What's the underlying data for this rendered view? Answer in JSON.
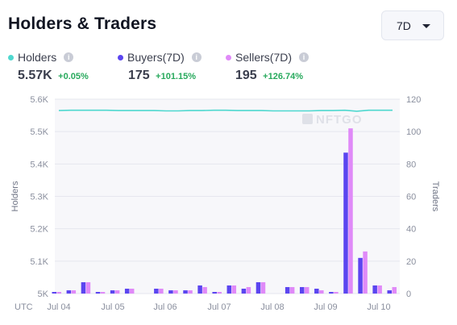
{
  "header": {
    "title": "Holders & Traders"
  },
  "range_select": {
    "value": "7D"
  },
  "stats": [
    {
      "label": "Holders",
      "value": "5.57K",
      "change": "+0.05%",
      "color": "#4fd8cf"
    },
    {
      "label": "Buyers(7D)",
      "value": "175",
      "change": "+101.15%",
      "color": "#5b45f0"
    },
    {
      "label": "Sellers(7D)",
      "value": "195",
      "change": "+126.74%",
      "color": "#e08af8"
    }
  ],
  "watermark": "NFTGO",
  "chart_data": {
    "type": "bar",
    "xlabel_utc": "UTC",
    "ylabel_left": "Holders",
    "ylabel_right": "Traders",
    "ylim_left": [
      5000,
      5600
    ],
    "ylim_right": [
      0,
      120
    ],
    "left_ticks": [
      "5K",
      "5.1K",
      "5.2K",
      "5.3K",
      "5.4K",
      "5.5K",
      "5.6K"
    ],
    "right_ticks": [
      "0",
      "20",
      "40",
      "60",
      "80",
      "100",
      "120"
    ],
    "x_ticks": [
      "Jul 04",
      "Jul 05",
      "Jul 06",
      "Jul 07",
      "Jul 08",
      "Jul 09",
      "Jul 10"
    ],
    "grid": true,
    "series": [
      {
        "name": "Holders",
        "type": "line",
        "color": "#4fd8cf",
        "values": [
          5565,
          5566,
          5566,
          5566,
          5566,
          5565,
          5565,
          5565,
          5565,
          5564,
          5564,
          5565,
          5565,
          5566,
          5566,
          5565,
          5565,
          5565,
          5564,
          5564,
          5564,
          5564,
          5565,
          5565,
          5566,
          5563,
          5566,
          5566,
          5566
        ]
      },
      {
        "name": "Buyers",
        "type": "bar",
        "color": "#5b45f0",
        "values": [
          1,
          2,
          7,
          1,
          2,
          3,
          0,
          3,
          2,
          2,
          5,
          1,
          5,
          3,
          7,
          0,
          4,
          4,
          3,
          1,
          87,
          22,
          5,
          2
        ]
      },
      {
        "name": "Sellers",
        "type": "bar",
        "color": "#e08af8",
        "values": [
          1,
          2,
          7,
          1,
          2,
          3,
          0,
          3,
          2,
          2,
          4,
          1,
          5,
          4,
          7,
          0,
          4,
          4,
          2,
          1,
          102,
          26,
          5,
          4
        ]
      }
    ]
  }
}
